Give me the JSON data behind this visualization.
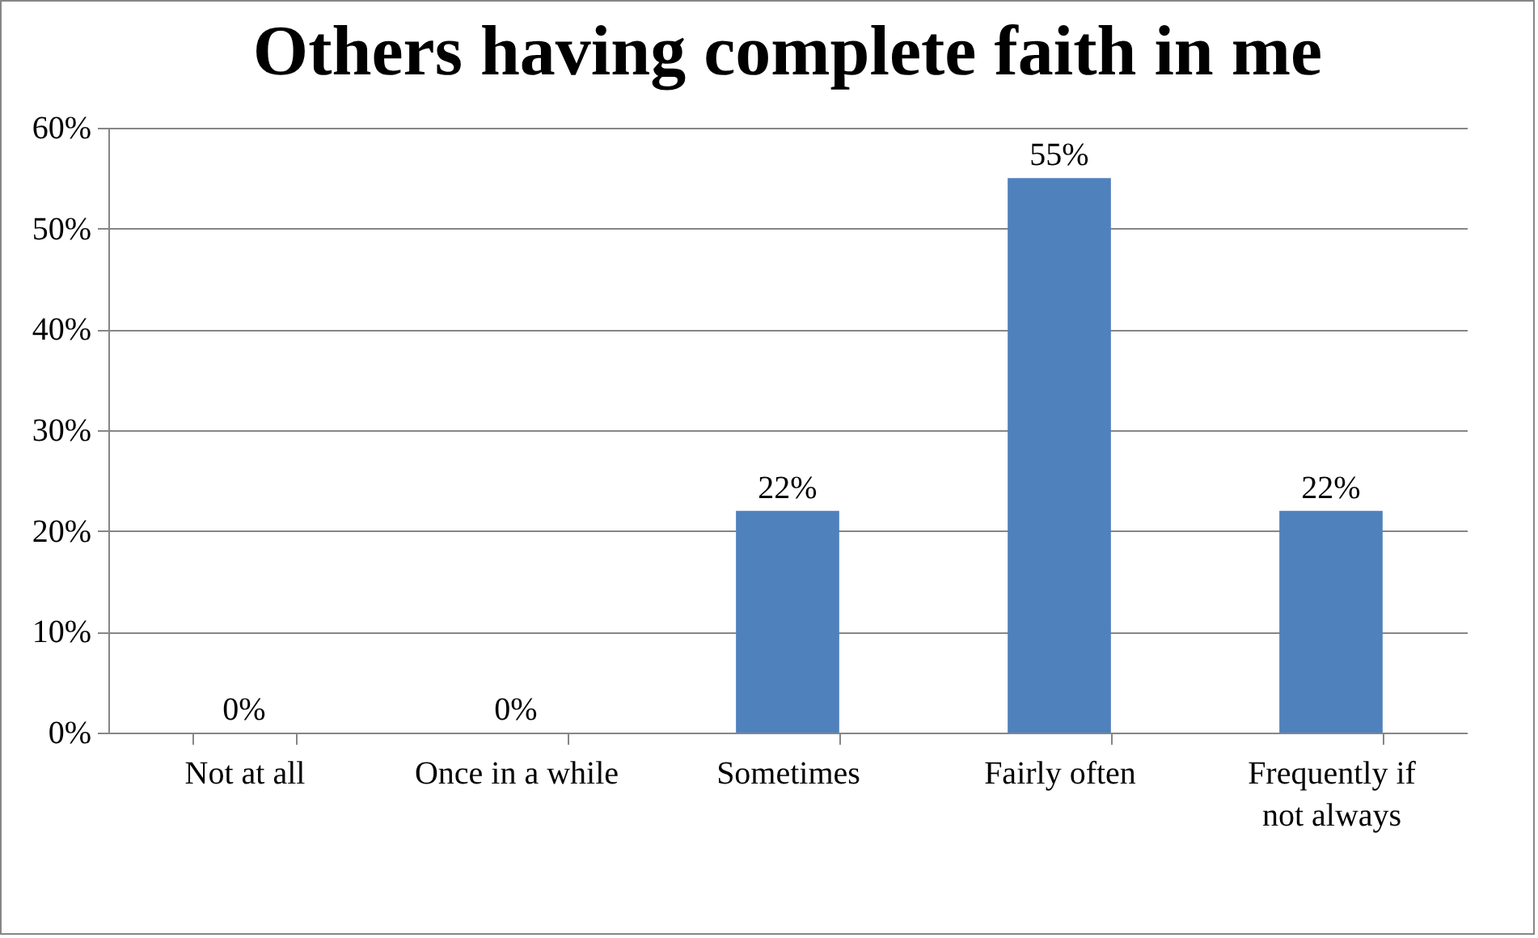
{
  "chart_data": {
    "type": "bar",
    "title": "Others having complete faith in me",
    "categories": [
      "Not at all",
      "Once in a while",
      "Sometimes",
      "Fairly often",
      "Frequently if not always"
    ],
    "values": [
      0,
      0,
      22,
      55,
      22
    ],
    "value_labels": [
      "0%",
      "0%",
      "22%",
      "55%",
      "22%"
    ],
    "color": "#4f81bd",
    "ylim": [
      0,
      60
    ],
    "yticks": [
      {
        "value": 0,
        "label": "0%"
      },
      {
        "value": 10,
        "label": "10%"
      },
      {
        "value": 20,
        "label": "20%"
      },
      {
        "value": 30,
        "label": "30%"
      },
      {
        "value": 40,
        "label": "40%"
      },
      {
        "value": 50,
        "label": "50%"
      },
      {
        "value": 60,
        "label": "60%"
      }
    ],
    "grid": true
  }
}
